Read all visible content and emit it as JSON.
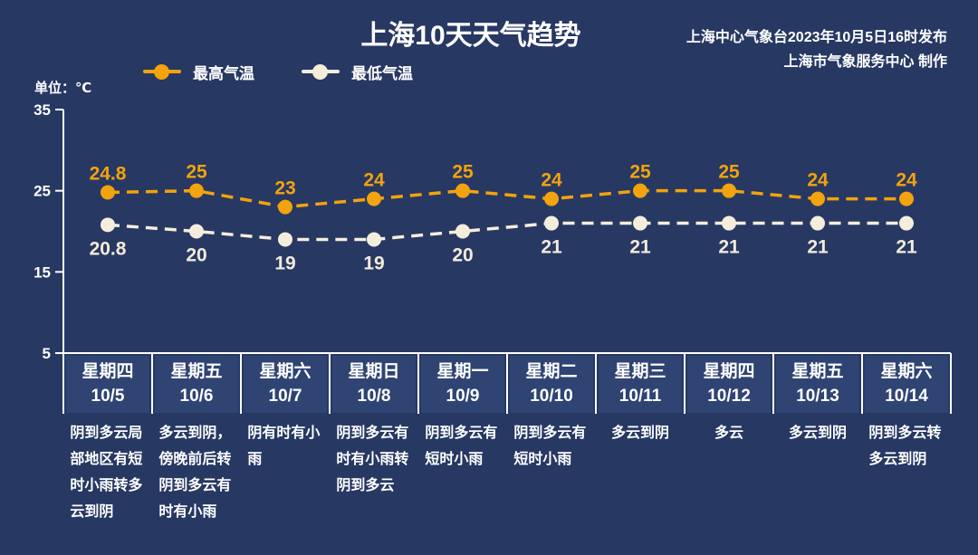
{
  "header": {
    "title": "上海10天天气趋势",
    "source_line1": "上海中心气象台2023年10月5日16时发布",
    "source_line2": "上海市气象服务中心 制作",
    "unit_label": "单位：℃"
  },
  "legend": {
    "high_label": "最高气温",
    "low_label": "最低气温"
  },
  "colors": {
    "background": "#273863",
    "day_panel": "#2F4473",
    "separator": "#FFFFFF",
    "axis": "#FFFFFF",
    "text": "#FFFFFF",
    "high_series": "#F2A30D",
    "low_series": "#F5EDDC"
  },
  "chart_data": {
    "type": "line",
    "title": "上海10天天气趋势",
    "unit": "℃",
    "line_style": "dashed",
    "legend_position": "top",
    "grid": false,
    "y_axis": {
      "min": 5,
      "max": 35,
      "ticks": [
        35,
        25,
        15,
        5
      ]
    },
    "categories": [
      {
        "weekday": "星期四",
        "date": "10/5",
        "weather": "阴到多云局部地区有短时小雨转多云到阴"
      },
      {
        "weekday": "星期五",
        "date": "10/6",
        "weather": "多云到阴，傍晚前后转阴到多云有时有小雨"
      },
      {
        "weekday": "星期六",
        "date": "10/7",
        "weather": "阴有时有小雨"
      },
      {
        "weekday": "星期日",
        "date": "10/8",
        "weather": "阴到多云有时有小雨转阴到多云"
      },
      {
        "weekday": "星期一",
        "date": "10/9",
        "weather": "阴到多云有短时小雨"
      },
      {
        "weekday": "星期二",
        "date": "10/10",
        "weather": "阴到多云有短时小雨"
      },
      {
        "weekday": "星期三",
        "date": "10/11",
        "weather": "多云到阴"
      },
      {
        "weekday": "星期四",
        "date": "10/12",
        "weather": "多云"
      },
      {
        "weekday": "星期五",
        "date": "10/13",
        "weather": "多云到阴"
      },
      {
        "weekday": "星期六",
        "date": "10/14",
        "weather": "阴到多云转多云到阴"
      }
    ],
    "series": [
      {
        "name": "最高气温",
        "color": "#F2A30D",
        "label_position": "above",
        "values": [
          24.8,
          25,
          23,
          24,
          25,
          24,
          25,
          25,
          24,
          24
        ]
      },
      {
        "name": "最低气温",
        "color": "#F5EDDC",
        "label_position": "below",
        "values": [
          20.8,
          20,
          19,
          19,
          20,
          21,
          21,
          21,
          21,
          21
        ]
      }
    ]
  }
}
